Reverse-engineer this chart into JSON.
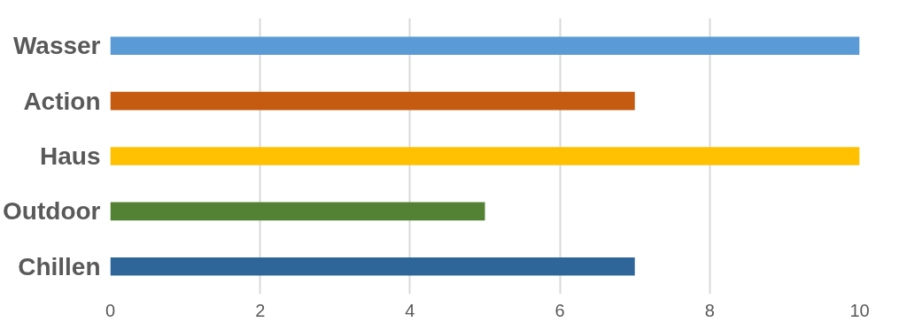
{
  "chart_data": {
    "type": "bar",
    "orientation": "horizontal",
    "categories": [
      "Wasser",
      "Action",
      "Haus",
      "Outdoor",
      "Chillen"
    ],
    "values": [
      10,
      7,
      10,
      5,
      7
    ],
    "colors": [
      "#5b9bd5",
      "#c55a11",
      "#ffc000",
      "#548235",
      "#2e6699"
    ],
    "xlim": [
      0,
      10
    ],
    "xticks": [
      0,
      2,
      4,
      6,
      8,
      10
    ],
    "grid": "x"
  }
}
